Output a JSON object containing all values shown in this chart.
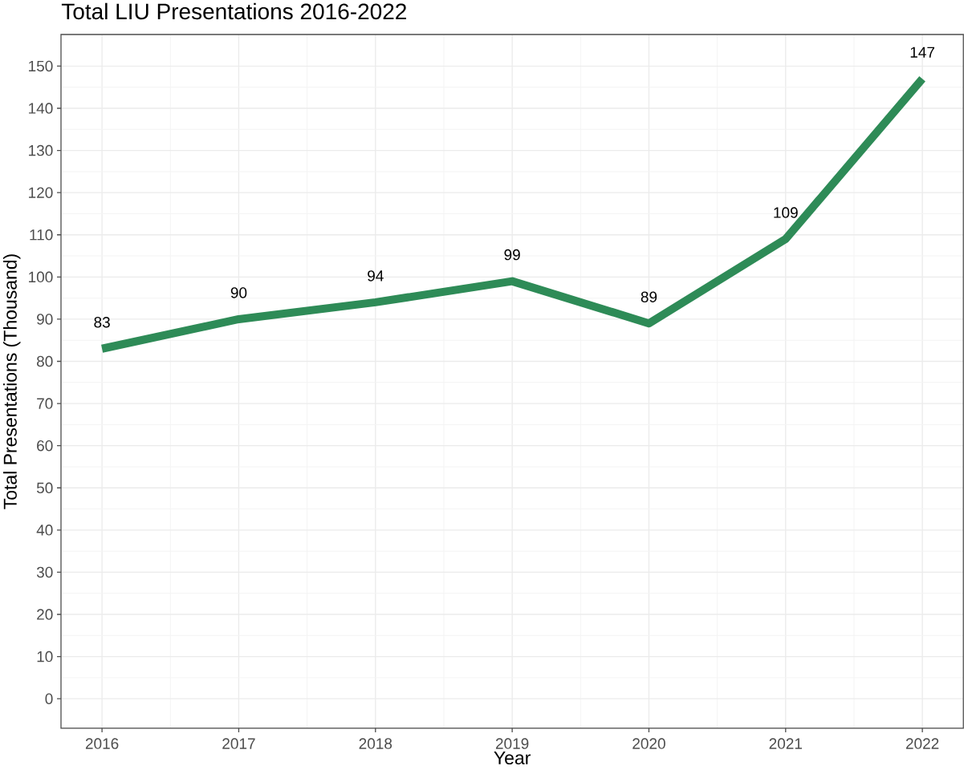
{
  "chart_data": {
    "type": "line",
    "title": "Total LIU Presentations 2016-2022",
    "xlabel": "Year",
    "ylabel": "Total Presentations (Thousand)",
    "x": [
      2016,
      2017,
      2018,
      2019,
      2020,
      2021,
      2022
    ],
    "values": [
      83,
      90,
      94,
      99,
      89,
      109,
      147
    ],
    "color": "#2e8b57",
    "line_style": "solid",
    "xlim": [
      2015.7,
      2022.3
    ],
    "ylim": [
      -7,
      157.5
    ],
    "xticks": [
      2016,
      2017,
      2018,
      2019,
      2020,
      2021,
      2022
    ],
    "yticks": [
      0,
      10,
      20,
      30,
      40,
      50,
      60,
      70,
      80,
      90,
      100,
      110,
      120,
      130,
      140,
      150
    ],
    "grid": true,
    "data_labels": true
  }
}
